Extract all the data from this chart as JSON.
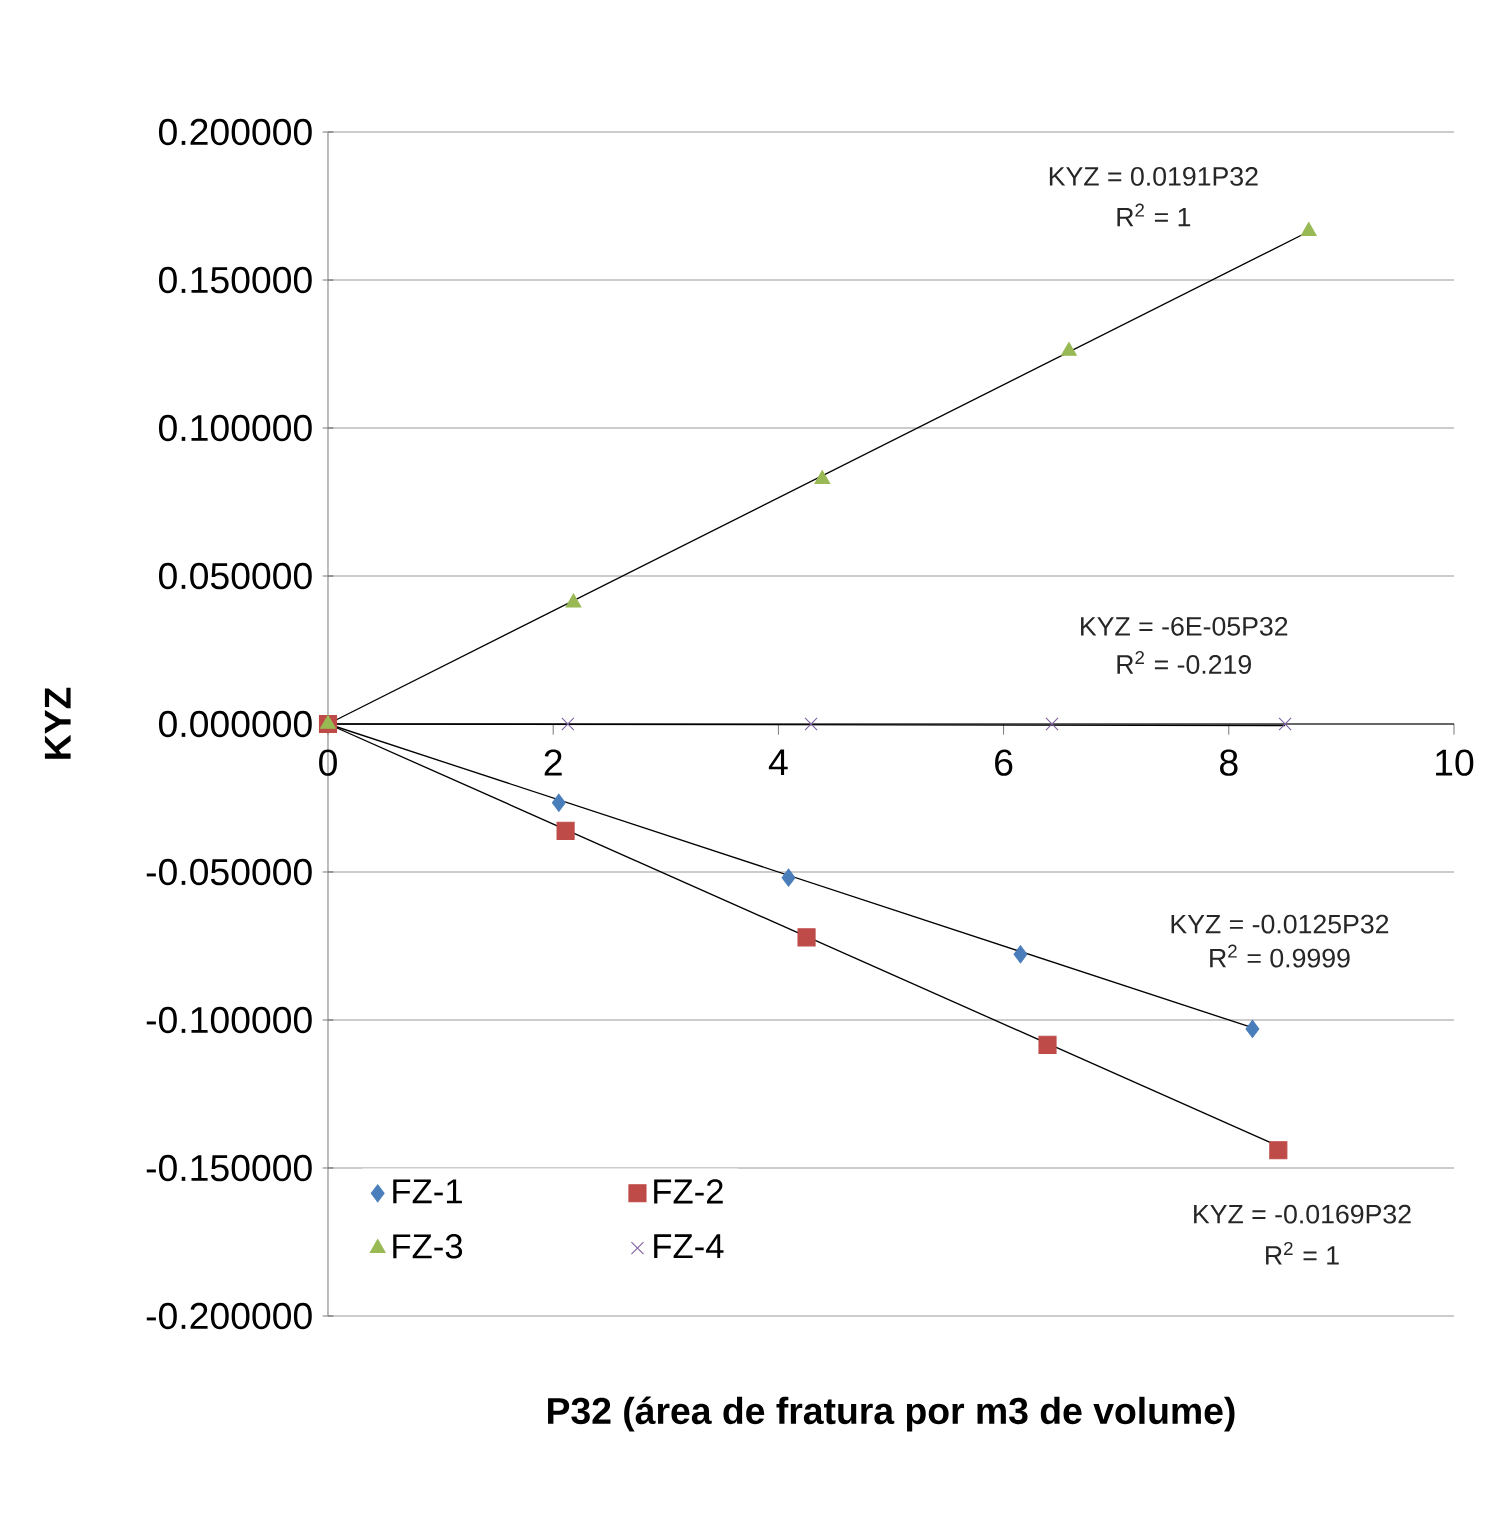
{
  "chart_data": {
    "type": "scatter",
    "xlabel": "P32 (área de fratura por m3 de volume)",
    "ylabel": "KYZ",
    "xlim": [
      0,
      10
    ],
    "xticks": [
      0,
      2,
      4,
      6,
      8,
      10
    ],
    "ylim": [
      -0.2,
      0.2
    ],
    "yticks": [
      {
        "value": -0.2,
        "label": "-0.200000"
      },
      {
        "value": -0.15,
        "label": "-0.150000"
      },
      {
        "value": -0.1,
        "label": "-0.100000"
      },
      {
        "value": -0.05,
        "label": "-0.050000"
      },
      {
        "value": 0,
        "label": "0.000000"
      },
      {
        "value": 0.05,
        "label": "0.050000"
      },
      {
        "value": 0.1,
        "label": "0.100000"
      },
      {
        "value": 0.15,
        "label": "0.150000"
      },
      {
        "value": 0.2,
        "label": "0.200000"
      }
    ],
    "grid": "y",
    "legend": "bottom left",
    "series": [
      {
        "name": "FZ-1",
        "color": "#4a7ebb",
        "marker": "diamond",
        "x": [
          2.05,
          4.09,
          6.15,
          8.21
        ],
        "values": [
          -0.0266,
          -0.0519,
          -0.0778,
          -0.103
        ]
      },
      {
        "name": "FZ-2",
        "color": "#be4b48",
        "marker": "square",
        "x": [
          0,
          2.11,
          4.25,
          6.39,
          8.44
        ],
        "values": [
          0,
          -0.0361,
          -0.0721,
          -0.1084,
          -0.144
        ]
      },
      {
        "name": "FZ-3",
        "color": "#98b954",
        "marker": "triangle",
        "x": [
          0,
          2.18,
          4.39,
          6.58,
          8.71
        ],
        "values": [
          0,
          0.041,
          0.0827,
          0.126,
          0.1665
        ]
      },
      {
        "name": "FZ-4",
        "color": "#7d60a0",
        "marker": "cross",
        "x": [
          2.13,
          4.29,
          6.43,
          8.5
        ],
        "values": [
          0,
          0,
          0,
          0
        ]
      },
      {
        "type": "line",
        "color": "#000000",
        "marker": "none",
        "line_style": "solid",
        "x": [
          0,
          8.21
        ],
        "values": [
          0,
          -0.1026
        ]
      },
      {
        "type": "line",
        "color": "#000000",
        "marker": "none",
        "line_style": "solid",
        "x": [
          0,
          8.44
        ],
        "values": [
          0,
          -0.1426
        ]
      },
      {
        "type": "line",
        "color": "#000000",
        "marker": "none",
        "line_style": "solid",
        "x": [
          0,
          8.71
        ],
        "values": [
          0,
          0.1664
        ]
      },
      {
        "type": "line",
        "color": "#000000",
        "marker": "none",
        "line_style": "solid",
        "x": [
          0,
          8.5
        ],
        "values": [
          0,
          -0.0005
        ]
      }
    ],
    "annotations": [
      "KYZ = 0.0191P32",
      "R$^{2}$ = 1",
      "KYZ = -6E-05P32",
      "R$^{2}$ = -0.219",
      "KYZ = -0.0125P32",
      "R$^{2}$ = 0.9999",
      "KYZ = -0.0169P32",
      "R$^{2}$ = 1"
    ]
  }
}
